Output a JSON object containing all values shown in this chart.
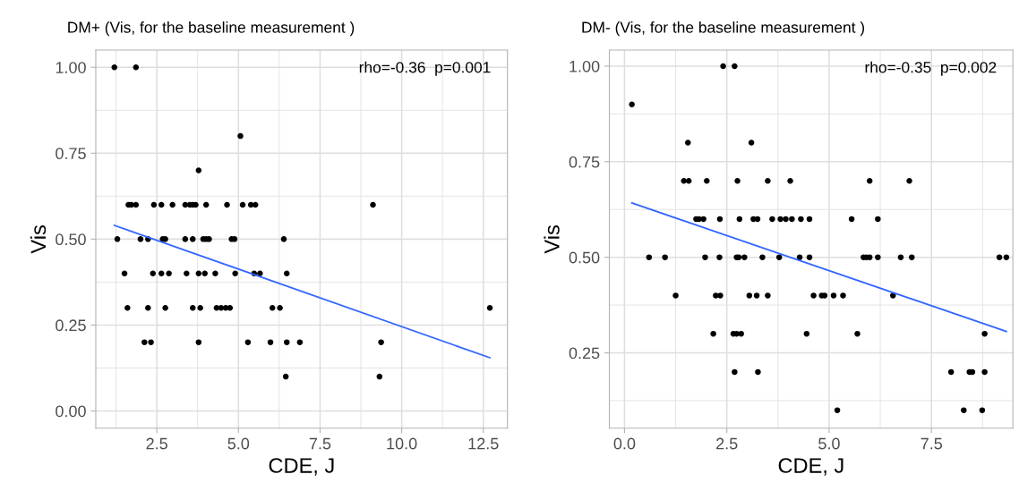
{
  "chart_data": [
    {
      "type": "scatter",
      "title": "DM+ (Vis, for the baseline measurement )",
      "xlabel": "CDE, J",
      "ylabel": "Vis",
      "xlim": [
        0.63,
        13.24
      ],
      "ylim": [
        -0.05,
        1.05
      ],
      "xticks": [
        {
          "value": 2.5,
          "label": "2.5"
        },
        {
          "value": 5,
          "label": "5.0"
        },
        {
          "value": 7.5,
          "label": "7.5"
        },
        {
          "value": 10,
          "label": "10.0"
        },
        {
          "value": 12.5,
          "label": "12.5"
        }
      ],
      "yticks": [
        {
          "value": 0,
          "label": "0.00"
        },
        {
          "value": 0.25,
          "label": "0.25"
        },
        {
          "value": 0.5,
          "label": "0.50"
        },
        {
          "value": 0.75,
          "label": "0.75"
        },
        {
          "value": 1,
          "label": "1.00"
        }
      ],
      "grid": true,
      "annotations": [
        {
          "text": "rho=-0.36  p=0.001"
        }
      ],
      "series": [
        {
          "marker": "circle",
          "color": "#000000",
          "x": [
            1.2,
            1.86,
            5.06,
            3.78,
            1.63,
            1.72,
            1.86,
            2.41,
            2.64,
            2.98,
            3.37,
            3.51,
            3.6,
            3.69,
            4.01,
            4.65,
            5.13,
            5.38,
            5.52,
            9.12,
            1.29,
            2.0,
            2.23,
            2.68,
            2.76,
            3.37,
            3.6,
            3.92,
            4.01,
            4.1,
            4.79,
            4.88,
            6.39,
            1.51,
            2.38,
            2.64,
            2.87,
            3.41,
            3.78,
            3.97,
            4.29,
            4.9,
            5.48,
            5.66,
            6.48,
            1.6,
            2.23,
            2.76,
            3.6,
            3.83,
            4.33,
            4.47,
            4.61,
            4.74,
            6.04,
            6.27,
            12.7,
            2.12,
            2.32,
            3.78,
            5.29,
            5.98,
            6.48,
            6.88,
            9.37,
            6.45,
            9.32
          ],
          "values": [
            1.0,
            1.0,
            0.8,
            0.7,
            0.6,
            0.6,
            0.6,
            0.6,
            0.6,
            0.6,
            0.6,
            0.6,
            0.6,
            0.6,
            0.6,
            0.6,
            0.6,
            0.6,
            0.6,
            0.6,
            0.5,
            0.5,
            0.5,
            0.5,
            0.5,
            0.5,
            0.5,
            0.5,
            0.5,
            0.5,
            0.5,
            0.5,
            0.5,
            0.4,
            0.4,
            0.4,
            0.4,
            0.4,
            0.4,
            0.4,
            0.4,
            0.4,
            0.4,
            0.4,
            0.4,
            0.3,
            0.3,
            0.3,
            0.3,
            0.3,
            0.3,
            0.3,
            0.3,
            0.3,
            0.3,
            0.3,
            0.3,
            0.2,
            0.2,
            0.2,
            0.2,
            0.2,
            0.2,
            0.2,
            0.2,
            0.1,
            0.1
          ]
        },
        {
          "type": "line",
          "color": "#3366ff",
          "x": [
            1.2,
            12.7
          ],
          "values": [
            0.54,
            0.155
          ]
        }
      ]
    },
    {
      "type": "scatter",
      "title": "DM- (Vis, for the baseline measurement )",
      "xlabel": "CDE, J",
      "ylabel": "Vis",
      "xlim": [
        -0.37,
        9.49
      ],
      "ylim": [
        0.053,
        1.042
      ],
      "xticks": [
        {
          "value": 0,
          "label": "0.0"
        },
        {
          "value": 2.5,
          "label": "2.5"
        },
        {
          "value": 5,
          "label": "5.0"
        },
        {
          "value": 7.5,
          "label": "7.5"
        }
      ],
      "yticks": [
        {
          "value": 0.25,
          "label": "0.25"
        },
        {
          "value": 0.5,
          "label": "0.50"
        },
        {
          "value": 0.75,
          "label": "0.75"
        },
        {
          "value": 1,
          "label": "1.00"
        }
      ],
      "grid": true,
      "annotations": [
        {
          "text": "rho=-0.35  p=0.002"
        }
      ],
      "series": [
        {
          "marker": "circle",
          "color": "#000000",
          "x": [
            0.18,
            2.41,
            2.69,
            1.55,
            3.1,
            1.45,
            1.57,
            2.01,
            2.76,
            3.5,
            4.05,
            5.99,
            6.96,
            1.75,
            1.82,
            1.93,
            2.33,
            2.81,
            3.15,
            3.25,
            3.61,
            3.81,
            3.94,
            4.09,
            4.31,
            4.52,
            5.55,
            6.19,
            0.6,
            0.99,
            1.97,
            2.32,
            2.74,
            2.79,
            2.93,
            3.37,
            3.78,
            4.28,
            4.52,
            5.84,
            5.91,
            5.99,
            6.19,
            6.75,
            7.02,
            9.16,
            9.33,
            1.25,
            2.23,
            2.34,
            3.05,
            3.23,
            3.5,
            4.62,
            4.82,
            4.89,
            5.11,
            5.34,
            6.56,
            2.17,
            2.66,
            2.74,
            2.85,
            4.45,
            5.69,
            8.8,
            2.69,
            3.26,
            7.98,
            8.43,
            8.5,
            8.8,
            5.2,
            8.29,
            8.74
          ],
          "values": [
            0.9,
            1.0,
            1.0,
            0.8,
            0.8,
            0.7,
            0.7,
            0.7,
            0.7,
            0.7,
            0.7,
            0.7,
            0.7,
            0.6,
            0.6,
            0.6,
            0.6,
            0.6,
            0.6,
            0.6,
            0.6,
            0.6,
            0.6,
            0.6,
            0.6,
            0.6,
            0.6,
            0.6,
            0.5,
            0.5,
            0.5,
            0.5,
            0.5,
            0.5,
            0.5,
            0.5,
            0.5,
            0.5,
            0.5,
            0.5,
            0.5,
            0.5,
            0.5,
            0.5,
            0.5,
            0.5,
            0.5,
            0.4,
            0.4,
            0.4,
            0.4,
            0.4,
            0.4,
            0.4,
            0.4,
            0.4,
            0.4,
            0.4,
            0.4,
            0.3,
            0.3,
            0.3,
            0.3,
            0.3,
            0.3,
            0.3,
            0.2,
            0.2,
            0.2,
            0.2,
            0.2,
            0.2,
            0.1,
            0.1,
            0.1
          ]
        },
        {
          "type": "line",
          "color": "#3366ff",
          "x": [
            0.18,
            9.33
          ],
          "values": [
            0.642,
            0.306
          ]
        }
      ]
    }
  ]
}
